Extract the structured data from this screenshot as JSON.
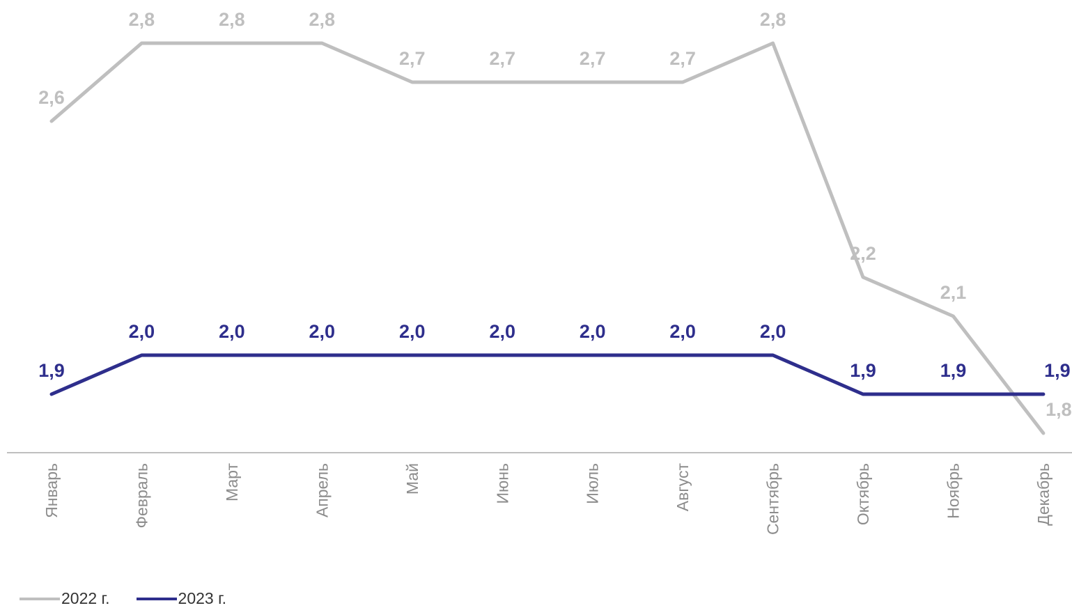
{
  "chart_data": {
    "type": "line",
    "categories": [
      "Январь",
      "Февраль",
      "Март",
      "Апрель",
      "Май",
      "Июнь",
      "Июль",
      "Август",
      "Сентябрь",
      "Октябрь",
      "Ноябрь",
      "Декабрь"
    ],
    "series": [
      {
        "name": "2022 г.",
        "color": "#bfbfbf",
        "values": [
          2.6,
          2.8,
          2.8,
          2.8,
          2.7,
          2.7,
          2.7,
          2.7,
          2.8,
          2.2,
          2.1,
          1.8
        ],
        "labels": [
          "2,6",
          "2,8",
          "2,8",
          "2,8",
          "2,7",
          "2,7",
          "2,7",
          "2,7",
          "2,8",
          "2,2",
          "2,1",
          "1,8"
        ]
      },
      {
        "name": "2023 г.",
        "color": "#2e2e8c",
        "values": [
          1.9,
          2.0,
          2.0,
          2.0,
          2.0,
          2.0,
          2.0,
          2.0,
          2.0,
          1.9,
          1.9,
          1.9
        ],
        "labels": [
          "1,9",
          "2,0",
          "2,0",
          "2,0",
          "2,0",
          "2,0",
          "2,0",
          "2,0",
          "2,0",
          "1,9",
          "1,9",
          "1,9"
        ]
      }
    ],
    "title": "",
    "xlabel": "",
    "ylabel": "",
    "ylim": [
      1.75,
      2.85
    ],
    "grid": false,
    "legend": "bottom-left"
  }
}
